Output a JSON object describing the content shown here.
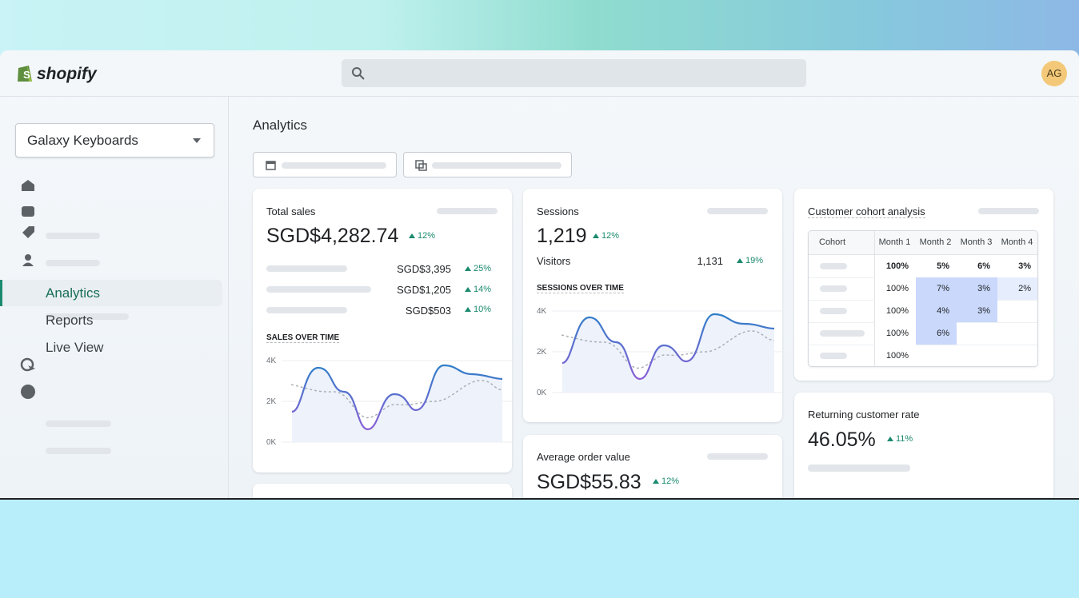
{
  "header": {
    "logo": "shopify",
    "avatar": "AG"
  },
  "sidebar": {
    "store": "Galaxy Keyboards",
    "nav": [
      "Analytics",
      "Reports",
      "Live View"
    ]
  },
  "main": {
    "title": "Analytics",
    "total_sales": {
      "title": "Total sales",
      "value": "SGD$4,282.74",
      "change": "12%",
      "rows": [
        {
          "value": "SGD$3,395",
          "change": "25%"
        },
        {
          "value": "SGD$1,205",
          "change": "14%"
        },
        {
          "value": "SGD$503",
          "change": "10%"
        }
      ],
      "chart_title": "SALES OVER TIME",
      "yticks": [
        "4K",
        "2K",
        "0K"
      ]
    },
    "sessions": {
      "title": "Sessions",
      "value": "1,219",
      "change": "12%",
      "visitors_label": "Visitors",
      "visitors": "1,131",
      "visitors_change": "19%",
      "chart_title": "SESSIONS OVER TIME",
      "yticks": [
        "4K",
        "2K",
        "0K"
      ]
    },
    "average_order_value": {
      "title": "Average order value",
      "value": "SGD$55.83",
      "change": "12%"
    },
    "cohort": {
      "title": "Customer cohort analysis",
      "columns": [
        "Cohort",
        "Month 1",
        "Month 2",
        "Month 3",
        "Month 4"
      ],
      "rows": [
        [
          "100%",
          "5%",
          "6%",
          "3%"
        ],
        [
          "100%",
          "7%",
          "3%",
          "2%"
        ],
        [
          "100%",
          "4%",
          "3%"
        ],
        [
          "100%",
          "6%"
        ],
        [
          "100%"
        ]
      ]
    },
    "returning": {
      "title": "Returning customer rate",
      "value": "46.05%",
      "change": "11%"
    }
  }
}
